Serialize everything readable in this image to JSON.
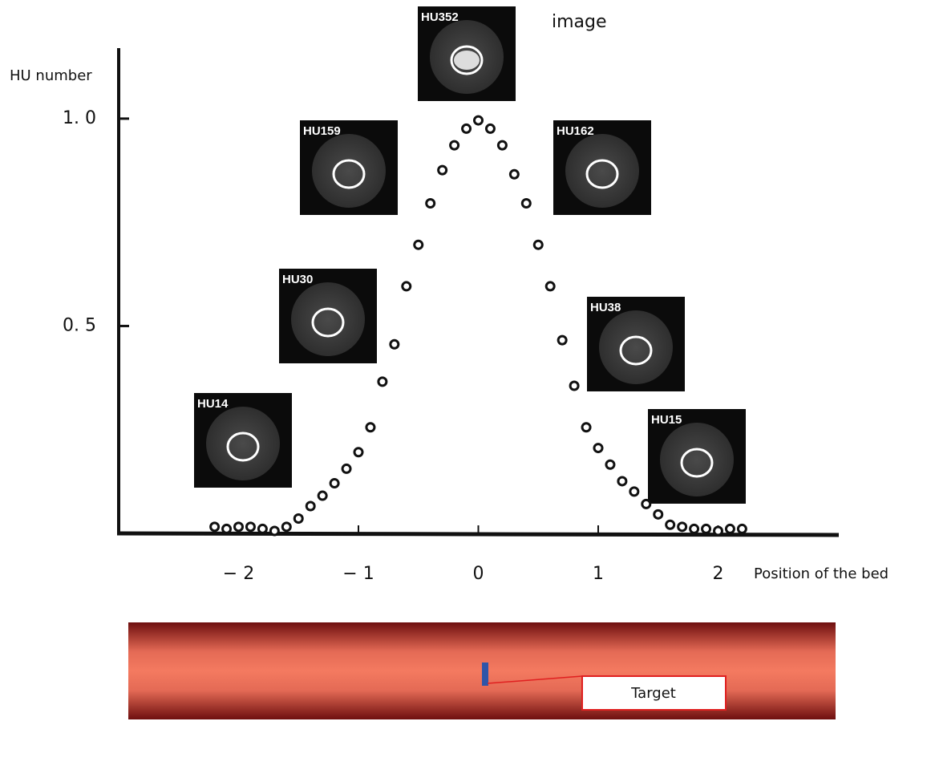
{
  "chart_data": {
    "type": "scatter",
    "y_label": "HU number",
    "x_label": "Position of the bed",
    "image_label": "image",
    "xlim": [
      -3,
      3
    ],
    "ylim": [
      0,
      1.17
    ],
    "xticks": [
      {
        "value": -2,
        "label": "− 2"
      },
      {
        "value": -1,
        "label": "− 1"
      },
      0,
      1,
      2
    ],
    "yticks": [
      {
        "value": 0.5,
        "label": "0. 5"
      },
      {
        "value": 1,
        "label": "1. 0"
      }
    ],
    "color": "#111111",
    "x": [
      -2.2,
      -2.1,
      -2.0,
      -1.9,
      -1.8,
      -1.7,
      -1.6,
      -1.5,
      -1.4,
      -1.3,
      -1.2,
      -1.1,
      -1.0,
      -0.9,
      -0.8,
      -0.7,
      -0.6,
      -0.5,
      -0.4,
      -0.3,
      -0.2,
      -0.1,
      0.0,
      0.1,
      0.2,
      0.3,
      0.4,
      0.5,
      0.6,
      0.7,
      0.8,
      0.9,
      1.0,
      1.1,
      1.2,
      1.3,
      1.4,
      1.5,
      1.6,
      1.7,
      1.8,
      1.9,
      2.0,
      2.1,
      2.2
    ],
    "values": [
      0.01,
      0.005,
      0.01,
      0.01,
      0.005,
      0.0,
      0.01,
      0.03,
      0.06,
      0.085,
      0.115,
      0.15,
      0.19,
      0.25,
      0.36,
      0.45,
      0.59,
      0.69,
      0.79,
      0.87,
      0.93,
      0.97,
      0.99,
      0.97,
      0.93,
      0.86,
      0.79,
      0.69,
      0.59,
      0.46,
      0.35,
      0.25,
      0.2,
      0.16,
      0.12,
      0.095,
      0.065,
      0.04,
      0.015,
      0.01,
      0.005,
      0.005,
      0.0,
      0.005,
      0.005
    ],
    "images": [
      "HU352",
      "HU159",
      "HU162",
      "HU30",
      "HU38",
      "HU14",
      "HU15"
    ]
  },
  "target_label": "Target"
}
